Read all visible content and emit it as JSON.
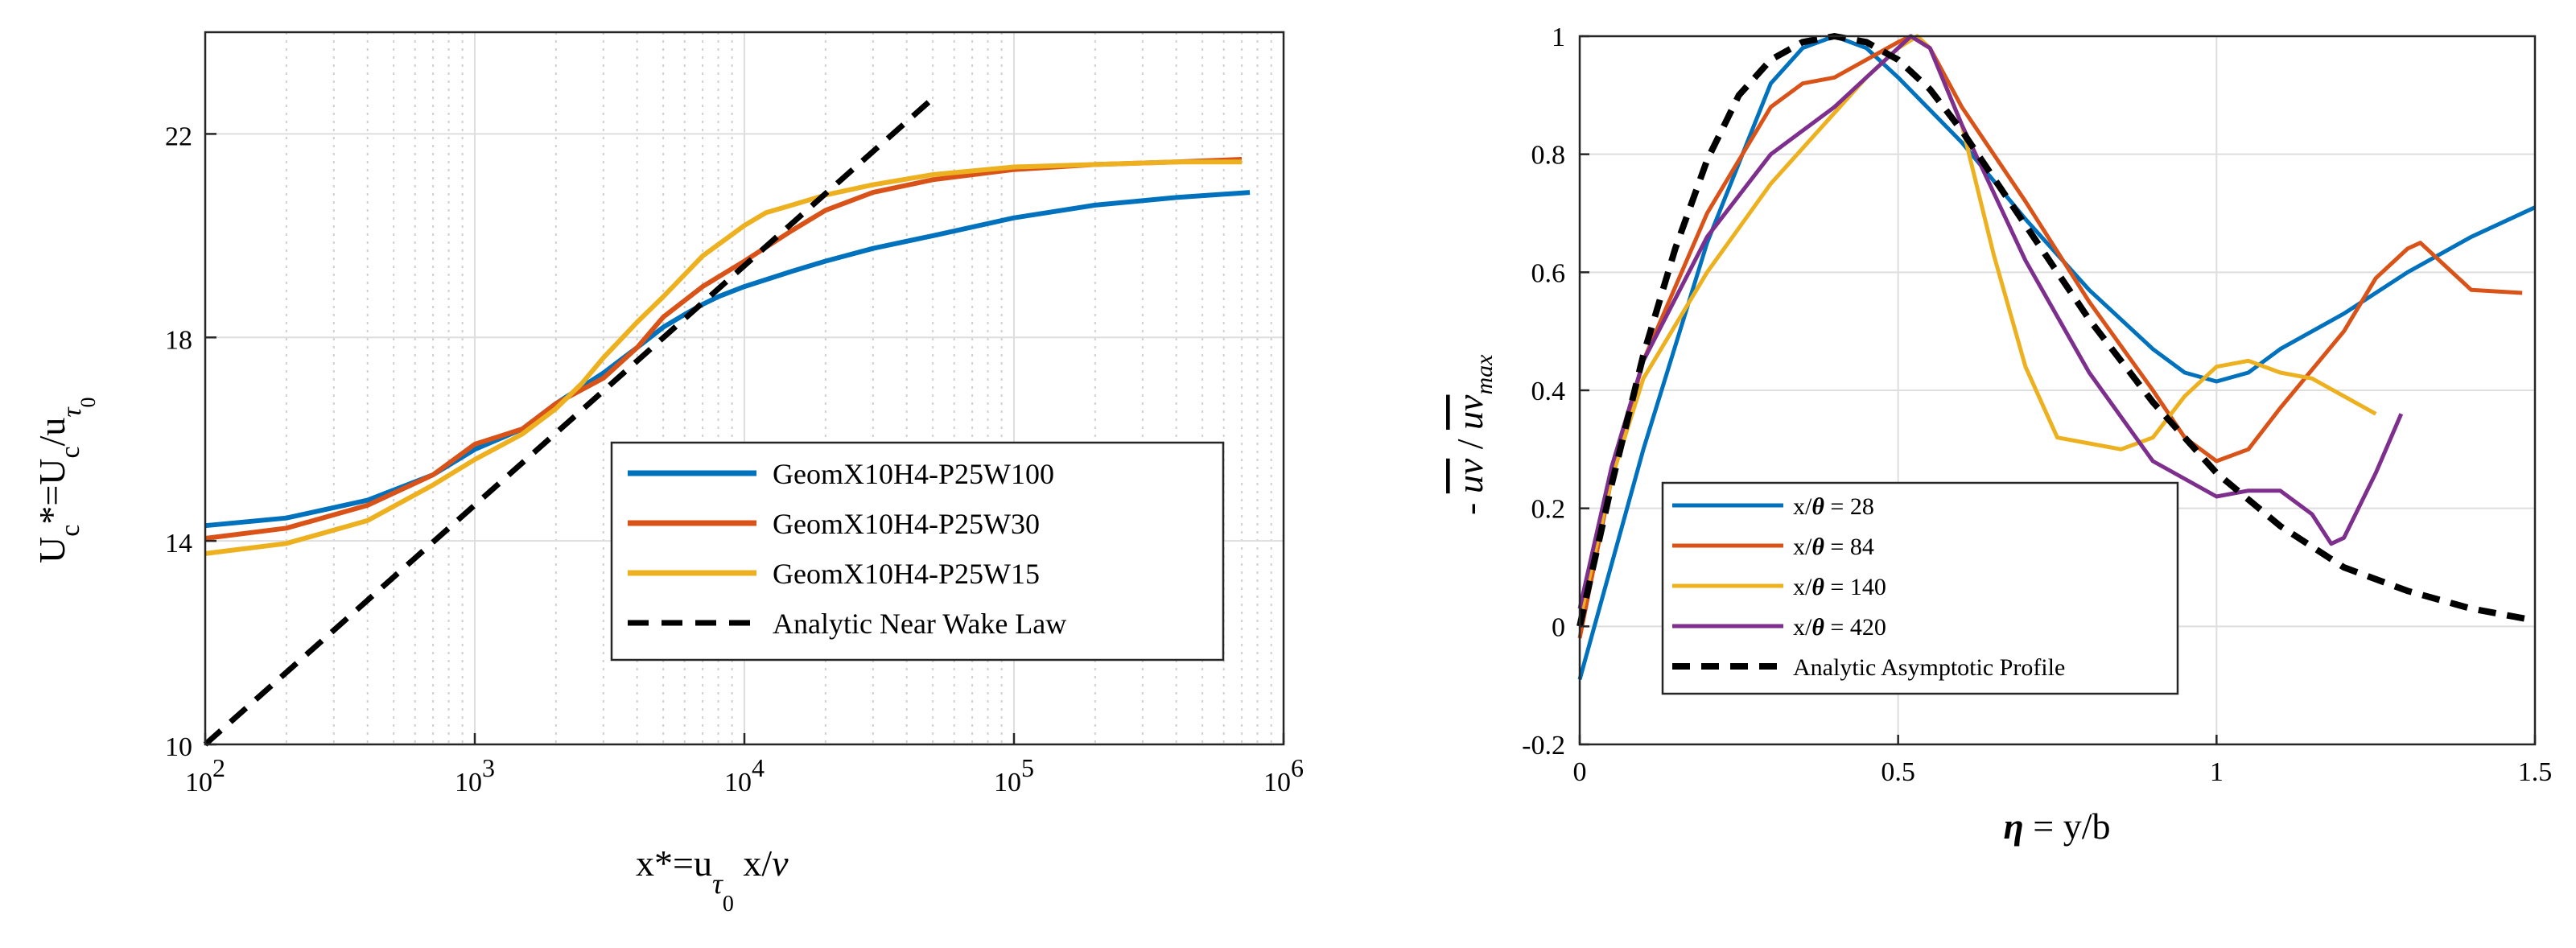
{
  "chart_data": [
    {
      "type": "line",
      "xscale": "log",
      "xlim": [
        100,
        1000000
      ],
      "ylim": [
        10,
        24
      ],
      "xticks": [
        {
          "value": 100,
          "base": "10",
          "exp": "2"
        },
        {
          "value": 1000,
          "base": "10",
          "exp": "3"
        },
        {
          "value": 10000,
          "base": "10",
          "exp": "4"
        },
        {
          "value": 100000,
          "base": "10",
          "exp": "5"
        },
        {
          "value": 1000000,
          "base": "10",
          "exp": "6"
        }
      ],
      "yticks": [
        {
          "value": 10,
          "label": "10"
        },
        {
          "value": 14,
          "label": "14"
        },
        {
          "value": 18,
          "label": "18"
        },
        {
          "value": 22,
          "label": "22"
        }
      ],
      "xlabel": {
        "a": "x*=u",
        "sub1": "τ",
        "sub2": "0",
        "b": " x/",
        "nu": "ν"
      },
      "ylabel": {
        "a": "U",
        "sub_c": "c",
        "b": "*=U",
        "sub_c2": "c",
        "c": "/u",
        "sub1": "τ",
        "sub2": "0"
      },
      "grid": true,
      "legend_position": "center-right",
      "series": [
        {
          "name": "GeomX10H4-P25W100",
          "color": "#0072BD",
          "style": "solid",
          "x": [
            100,
            200,
            400,
            700,
            1000,
            1500,
            2000,
            3000,
            4000,
            5000,
            6000,
            7000,
            8000,
            10000,
            15000,
            20000,
            30000,
            50000,
            100000,
            200000,
            400000,
            750000
          ],
          "y": [
            14.3,
            14.45,
            14.8,
            15.3,
            15.8,
            16.2,
            16.7,
            17.3,
            17.8,
            18.2,
            18.45,
            18.65,
            18.8,
            19.0,
            19.3,
            19.5,
            19.75,
            20.0,
            20.35,
            20.6,
            20.75,
            20.85
          ]
        },
        {
          "name": "GeomX10H4-P25W30",
          "color": "#D95319",
          "style": "solid",
          "x": [
            100,
            200,
            400,
            700,
            1000,
            1500,
            2000,
            3000,
            4000,
            5000,
            7000,
            10000,
            15000,
            20000,
            30000,
            50000,
            100000,
            200000,
            400000,
            700000
          ],
          "y": [
            14.05,
            14.25,
            14.7,
            15.3,
            15.9,
            16.2,
            16.7,
            17.2,
            17.8,
            18.4,
            19.0,
            19.5,
            20.1,
            20.5,
            20.85,
            21.1,
            21.3,
            21.4,
            21.45,
            21.5
          ]
        },
        {
          "name": "GeomX10H4-P25W15",
          "color": "#EDB120",
          "style": "solid",
          "x": [
            100,
            200,
            400,
            700,
            1000,
            1500,
            2000,
            2500,
            3000,
            4000,
            5000,
            7000,
            10000,
            12000,
            15000,
            20000,
            30000,
            50000,
            100000,
            200000,
            400000,
            700000
          ],
          "y": [
            13.75,
            13.95,
            14.4,
            15.1,
            15.6,
            16.1,
            16.6,
            17.1,
            17.6,
            18.3,
            18.8,
            19.6,
            20.2,
            20.45,
            20.6,
            20.8,
            21.0,
            21.2,
            21.35,
            21.4,
            21.45,
            21.45
          ]
        },
        {
          "name": "Analytic Near Wake Law",
          "color": "#000000",
          "style": "dashed",
          "x": [
            100,
            50000
          ],
          "y": [
            10,
            22.7
          ]
        }
      ]
    },
    {
      "type": "line",
      "xlim": [
        0,
        1.5
      ],
      "ylim": [
        -0.2,
        1
      ],
      "xticks": [
        {
          "value": 0,
          "label": "0"
        },
        {
          "value": 0.5,
          "label": "0.5"
        },
        {
          "value": 1,
          "label": "1"
        },
        {
          "value": 1.5,
          "label": "1.5"
        }
      ],
      "yticks": [
        {
          "value": -0.2,
          "label": "-0.2"
        },
        {
          "value": 0,
          "label": "0"
        },
        {
          "value": 0.2,
          "label": "0.2"
        },
        {
          "value": 0.4,
          "label": "0.4"
        },
        {
          "value": 0.6,
          "label": "0.6"
        },
        {
          "value": 0.8,
          "label": "0.8"
        },
        {
          "value": 1,
          "label": "1"
        }
      ],
      "xlabel": {
        "eta": "η",
        "rest": " = y/b"
      },
      "ylabel": {
        "a": "- ",
        "uv": "uv",
        "b": " / ",
        "uv2": "uv",
        "sub": "max"
      },
      "grid": true,
      "legend_position": "bottom-left",
      "series": [
        {
          "name": "x/θ = 28",
          "label_prefix": "x/",
          "theta": "θ",
          "label_suffix": " = 28",
          "color": "#0072BD",
          "style": "solid",
          "x": [
            0,
            0.1,
            0.2,
            0.3,
            0.35,
            0.4,
            0.45,
            0.5,
            0.6,
            0.7,
            0.8,
            0.9,
            0.95,
            1.0,
            1.05,
            1.1,
            1.2,
            1.3,
            1.4,
            1.5
          ],
          "y": [
            -0.09,
            0.3,
            0.65,
            0.92,
            0.98,
            1.0,
            0.98,
            0.93,
            0.82,
            0.69,
            0.57,
            0.47,
            0.43,
            0.415,
            0.43,
            0.47,
            0.53,
            0.6,
            0.66,
            0.71
          ]
        },
        {
          "name": "x/θ = 84",
          "label_prefix": "x/",
          "theta": "θ",
          "label_suffix": " = 84",
          "color": "#D95319",
          "style": "solid",
          "x": [
            0,
            0.05,
            0.1,
            0.2,
            0.3,
            0.35,
            0.4,
            0.45,
            0.5,
            0.52,
            0.55,
            0.6,
            0.7,
            0.8,
            0.9,
            0.95,
            1.0,
            1.05,
            1.1,
            1.2,
            1.25,
            1.3,
            1.32,
            1.35,
            1.4,
            1.48
          ],
          "y": [
            -0.02,
            0.25,
            0.45,
            0.7,
            0.88,
            0.92,
            0.93,
            0.96,
            0.99,
            1.0,
            0.98,
            0.88,
            0.72,
            0.55,
            0.4,
            0.32,
            0.28,
            0.3,
            0.37,
            0.5,
            0.59,
            0.64,
            0.65,
            0.62,
            0.57,
            0.565
          ]
        },
        {
          "name": "x/θ = 140",
          "label_prefix": "x/",
          "theta": "θ",
          "label_suffix": " = 140",
          "color": "#EDB120",
          "style": "solid",
          "x": [
            0,
            0.05,
            0.1,
            0.2,
            0.3,
            0.4,
            0.45,
            0.5,
            0.53,
            0.55,
            0.6,
            0.65,
            0.7,
            0.75,
            0.8,
            0.85,
            0.9,
            0.95,
            1.0,
            1.05,
            1.1,
            1.15,
            1.2,
            1.25
          ],
          "y": [
            0.01,
            0.25,
            0.42,
            0.6,
            0.75,
            0.87,
            0.93,
            0.98,
            1.0,
            0.98,
            0.85,
            0.63,
            0.44,
            0.32,
            0.31,
            0.3,
            0.32,
            0.39,
            0.44,
            0.45,
            0.43,
            0.42,
            0.39,
            0.36
          ]
        },
        {
          "name": "x/θ = 420",
          "label_prefix": "x/",
          "theta": "θ",
          "label_suffix": " = 420",
          "color": "#7E2F8E",
          "style": "solid",
          "x": [
            0,
            0.05,
            0.1,
            0.2,
            0.3,
            0.4,
            0.45,
            0.5,
            0.52,
            0.55,
            0.6,
            0.7,
            0.8,
            0.9,
            1.0,
            1.05,
            1.1,
            1.15,
            1.18,
            1.2,
            1.25,
            1.29
          ],
          "y": [
            0.03,
            0.27,
            0.45,
            0.66,
            0.8,
            0.88,
            0.93,
            0.98,
            1.0,
            0.98,
            0.85,
            0.62,
            0.43,
            0.28,
            0.22,
            0.23,
            0.23,
            0.19,
            0.14,
            0.15,
            0.26,
            0.36
          ]
        },
        {
          "name": "Analytic Asymptotic Profile",
          "label_prefix": "Analytic Asymptotic Profile",
          "theta": "",
          "label_suffix": "",
          "color": "#000000",
          "style": "dashed",
          "x": [
            0,
            0.05,
            0.1,
            0.15,
            0.2,
            0.25,
            0.3,
            0.35,
            0.4,
            0.45,
            0.5,
            0.55,
            0.6,
            0.7,
            0.8,
            0.9,
            1.0,
            1.1,
            1.2,
            1.3,
            1.4,
            1.5
          ],
          "y": [
            0,
            0.24,
            0.46,
            0.64,
            0.79,
            0.9,
            0.96,
            0.99,
            1.0,
            0.99,
            0.96,
            0.91,
            0.84,
            0.68,
            0.52,
            0.38,
            0.26,
            0.17,
            0.1,
            0.06,
            0.03,
            0.01
          ]
        }
      ]
    }
  ]
}
